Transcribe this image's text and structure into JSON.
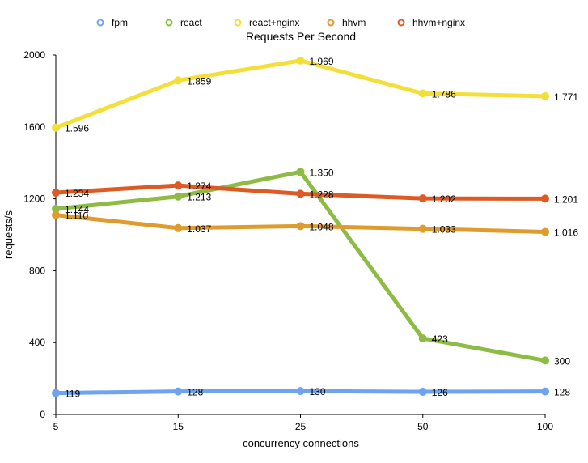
{
  "chart_data": {
    "type": "line",
    "title": "Requests Per Second",
    "xlabel": "concurrency connections",
    "ylabel": "requests/s",
    "categories": [
      "5",
      "15",
      "25",
      "50",
      "100"
    ],
    "ylim": [
      0,
      2000
    ],
    "yticks": [
      0,
      400,
      800,
      1200,
      1600,
      2000
    ],
    "grid": false,
    "legend_position": "top",
    "series": [
      {
        "name": "fpm",
        "color": "#6fa3ef",
        "values": [
          119,
          128,
          130,
          126,
          128
        ],
        "labels": [
          "119",
          "128",
          "130",
          "126",
          "128"
        ]
      },
      {
        "name": "react",
        "color": "#8dbb45",
        "values": [
          1144,
          1213,
          1350,
          423,
          300
        ],
        "labels": [
          "1.144",
          "1.213",
          "1.350",
          "423",
          "300"
        ]
      },
      {
        "name": "react+nginx",
        "color": "#f2df37",
        "values": [
          1596,
          1859,
          1969,
          1786,
          1771
        ],
        "labels": [
          "1.596",
          "1.859",
          "1.969",
          "1.786",
          "1.771"
        ]
      },
      {
        "name": "hhvm",
        "color": "#e09b2d",
        "values": [
          1110,
          1037,
          1048,
          1033,
          1016
        ],
        "labels": [
          "1.110",
          "1.037",
          "1.048",
          "1.033",
          "1.016"
        ]
      },
      {
        "name": "hhvm+nginx",
        "color": "#de5a25",
        "values": [
          1234,
          1274,
          1228,
          1202,
          1201
        ],
        "labels": [
          "1.234",
          "1.274",
          "1.228",
          "1.202",
          "1.201"
        ]
      }
    ]
  }
}
